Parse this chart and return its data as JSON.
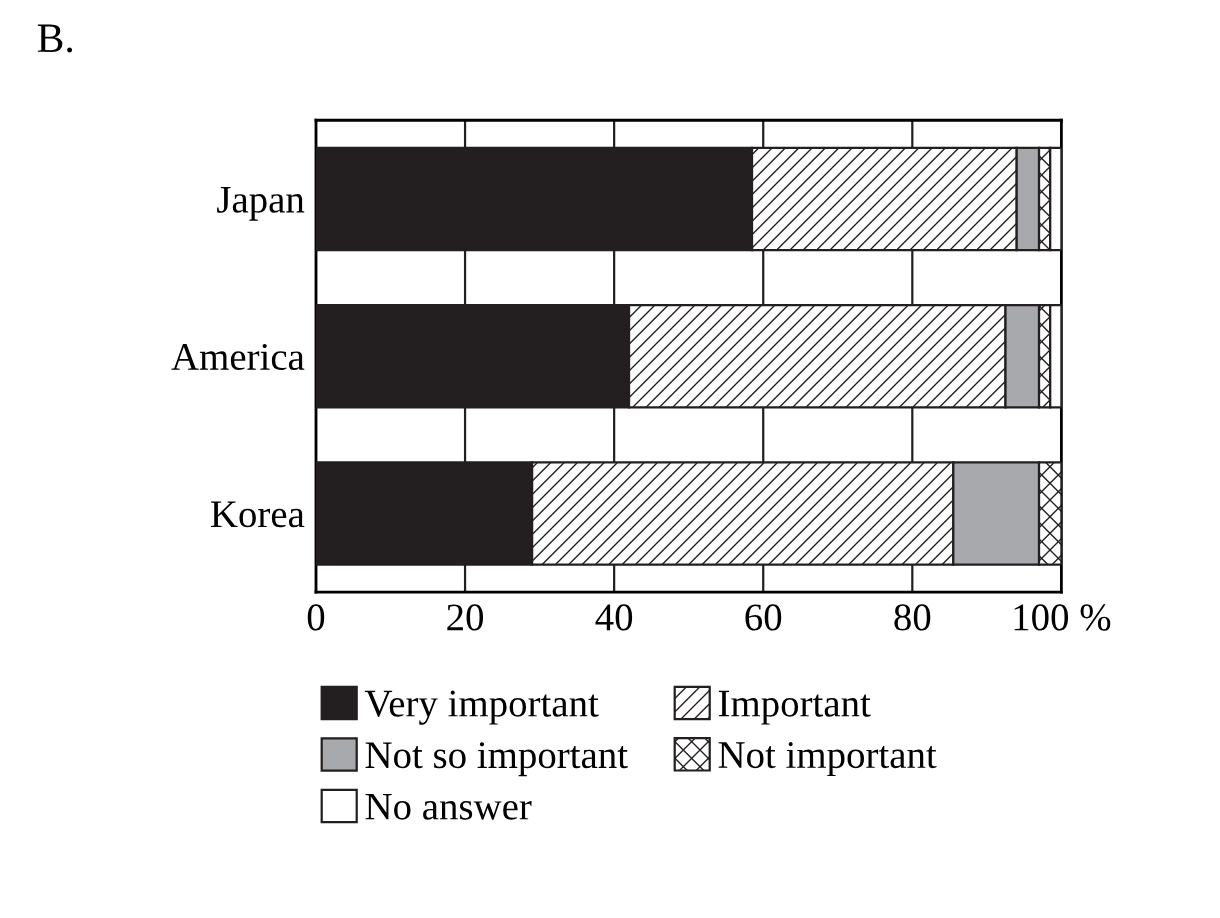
{
  "chart_data": {
    "type": "bar",
    "title": "B.",
    "orientation": "horizontal",
    "stacked": true,
    "categories": [
      "Japan",
      "America",
      "Korea"
    ],
    "series": [
      {
        "name": "Very important",
        "color": "#231f20",
        "values": [
          58.5,
          42,
          29
        ]
      },
      {
        "name": "Important",
        "color": "#231f20",
        "values": [
          35.5,
          50.5,
          56.5
        ]
      },
      {
        "name": "Not so important",
        "color": "#a7a9ac",
        "values": [
          3,
          4.5,
          11.5
        ]
      },
      {
        "name": "Not important",
        "color": "#231f20",
        "values": [
          1.5,
          1.5,
          3
        ]
      },
      {
        "name": "No answer",
        "color": "#ffffff",
        "values": [
          1.5,
          1.5,
          0
        ]
      }
    ],
    "xlim": [
      0,
      100
    ],
    "xticks": [
      0,
      20,
      40,
      60,
      80,
      {
        "value": 100,
        "label": "100 %"
      }
    ],
    "grid": "x",
    "legend": "bottom"
  }
}
